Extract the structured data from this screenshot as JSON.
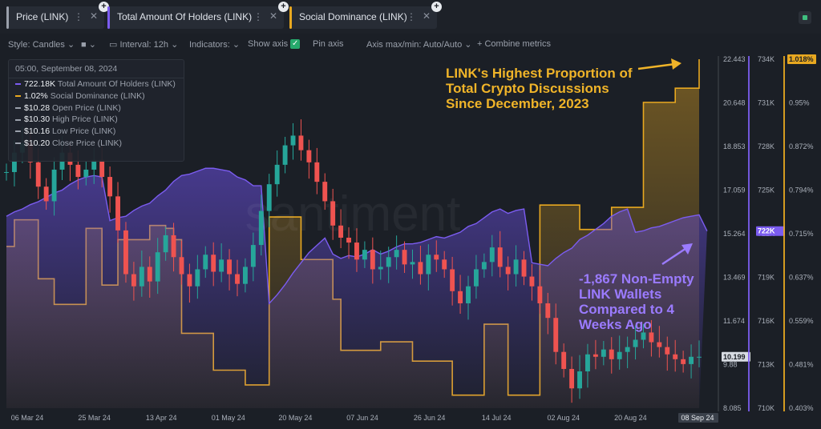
{
  "tabs": [
    {
      "label": "Price (LINK)",
      "color": "#9aa0ab"
    },
    {
      "label": "Total Amount Of Holders (LINK)",
      "color": "#7b5cf0"
    },
    {
      "label": "Social Dominance (LINK)",
      "color": "#e8a820"
    }
  ],
  "toolbar": {
    "style": "Style: Candles",
    "interval": "Interval: 12h",
    "indicators": "Indicators:",
    "show_axis": "Show axis",
    "pin_axis": "Pin axis",
    "axis_minmax": "Axis max/min: Auto/Auto",
    "combine": "+ Combine metrics"
  },
  "legend": {
    "timestamp": "05:00, September 08, 2024",
    "rows": [
      {
        "value": "722.18K",
        "name": "Total Amount Of Holders (LINK)",
        "color": "#7b5cf0"
      },
      {
        "value": "1.02%",
        "name": "Social Dominance (LINK)",
        "color": "#e8a820"
      },
      {
        "value": "$10.28",
        "name": "Open Price (LINK)",
        "color": "#9aa0ab"
      },
      {
        "value": "$10.30",
        "name": "High Price (LINK)",
        "color": "#9aa0ab"
      },
      {
        "value": "$10.16",
        "name": "Low Price (LINK)",
        "color": "#9aa0ab"
      },
      {
        "value": "$10.20",
        "name": "Close Price (LINK)",
        "color": "#9aa0ab"
      }
    ]
  },
  "watermark": "santiment",
  "annotations": {
    "social": [
      "LINK's Highest Proportion of",
      "Total Crypto Discussions",
      "Since December, 2023"
    ],
    "holders": [
      "-1,867 Non-Empty",
      "LINK Wallets",
      "Compared to 4",
      "Weeks Ago"
    ]
  },
  "colors": {
    "price_up": "#26a69a",
    "price_down": "#ef5350",
    "holders": "#7b5cf0",
    "social": "#e8a820",
    "annotation_social": "#f0b429",
    "annotation_holders": "#9b7bff"
  },
  "chart_data": {
    "type": "line",
    "x_ticks": [
      "06 Mar 24",
      "25 Mar 24",
      "13 Apr 24",
      "01 May 24",
      "20 May 24",
      "07 Jun 24",
      "26 Jun 24",
      "14 Jul 24",
      "02 Aug 24",
      "20 Aug 24",
      "08 Sep 24"
    ],
    "series": [
      {
        "name": "Price (LINK)",
        "axis": "price",
        "style": "candles",
        "ylim": [
          8.085,
          22.443
        ],
        "ticks": [
          "22.443",
          "20.648",
          "18.853",
          "17.059",
          "15.264",
          "13.469",
          "11.674",
          "9.88",
          "8.085"
        ],
        "last_label": "10.199",
        "values": [
          17.8,
          18.6,
          19.0,
          18.2,
          17.2,
          16.6,
          17.9,
          18.6,
          18.1,
          17.6,
          17.9,
          18.3,
          17.6,
          16.8,
          15.4,
          13.6,
          13.1,
          13.9,
          13.3,
          14.5,
          15.2,
          14.3,
          13.6,
          13.1,
          13.8,
          14.4,
          13.7,
          14.2,
          13.6,
          13.2,
          13.9,
          14.8,
          16.2,
          17.3,
          18.1,
          18.9,
          19.3,
          18.7,
          18.2,
          17.4,
          16.6,
          15.6,
          15.1,
          14.9,
          14.2,
          14.6,
          13.8,
          13.9,
          14.3,
          14.6,
          14.0,
          14.1,
          13.6,
          14.4,
          14.2,
          13.8,
          12.9,
          12.4,
          13.1,
          13.8,
          14.1,
          14.7,
          13.9,
          13.6,
          14.2,
          13.5,
          13.1,
          12.4,
          11.8,
          10.4,
          9.7,
          8.9,
          9.6,
          10.3,
          10.2,
          10.5,
          10.1,
          10.4,
          10.6,
          10.9,
          11.2,
          10.8,
          10.6,
          10.3,
          10.1,
          9.9,
          10.2,
          10.2
        ]
      },
      {
        "name": "Total Amount Of Holders (LINK)",
        "axis": "holders",
        "ylim": [
          710,
          734
        ],
        "ticks": [
          "734K",
          "731K",
          "728K",
          "725K",
          "722K",
          "719K",
          "716K",
          "713K",
          "710K"
        ],
        "last_label": "722K",
        "values": [
          723.2,
          723.5,
          723.7,
          724.0,
          724.2,
          724.5,
          724.8,
          725.0,
          725.4,
          725.7,
          725.9,
          726.0,
          725.9,
          722.9,
          723.1,
          723.2,
          723.6,
          723.9,
          724.1,
          724.6,
          725.0,
          725.6,
          726.0,
          726.1,
          726.3,
          726.5,
          726.5,
          726.4,
          726.3,
          725.9,
          725.7,
          725.3,
          725.3,
          717.2,
          717.8,
          718.5,
          719.3,
          720.0,
          720.7,
          721.2,
          721.7,
          720.6,
          720.3,
          720.5,
          720.4,
          720.6,
          720.9,
          720.6,
          720.8,
          721.1,
          721.3,
          721.3,
          721.4,
          721.6,
          721.8,
          721.7,
          721.9,
          722.1,
          722.5,
          722.7,
          723.1,
          723.5,
          723.7,
          723.4,
          723.6,
          723.7,
          720.0,
          719.9,
          719.8,
          720.3,
          720.7,
          721.0,
          721.6,
          721.9,
          722.3,
          722.7,
          723.2,
          723.5,
          723.7,
          722.1,
          722.2,
          722.4,
          722.5,
          722.7,
          722.9,
          723.1,
          723.2,
          723.3,
          722.18
        ]
      },
      {
        "name": "Social Dominance (LINK)",
        "axis": "social",
        "ylim": [
          0.403,
          1.018
        ],
        "ticks": [
          "1.018%",
          "0.95%",
          "0.872%",
          "0.794%",
          "0.715%",
          "0.637%",
          "0.559%",
          "0.481%",
          "0.403%"
        ],
        "last_label": "1.018%",
        "values": [
          0.688,
          0.735,
          0.735,
          0.735,
          0.631,
          0.631,
          0.586,
          0.586,
          0.586,
          0.586,
          0.72,
          0.72,
          0.62,
          0.62,
          0.7,
          0.7,
          0.7,
          0.7,
          0.725,
          0.725,
          0.72,
          0.7,
          0.535,
          0.535,
          0.535,
          0.535,
          0.47,
          0.47,
          0.47,
          0.47,
          0.444,
          0.444,
          0.444,
          0.74,
          0.74,
          0.74,
          0.74,
          0.665,
          0.665,
          0.665,
          0.665,
          0.595,
          0.505,
          0.505,
          0.505,
          0.505,
          0.505,
          0.52,
          0.52,
          0.52,
          0.52,
          0.486,
          0.486,
          0.486,
          0.486,
          0.486,
          0.426,
          0.426,
          0.426,
          0.426,
          0.551,
          0.551,
          0.551,
          0.426,
          0.426,
          0.426,
          0.426,
          0.761,
          0.761,
          0.761,
          0.761,
          0.761,
          0.718,
          0.718,
          0.718,
          0.718,
          0.757,
          0.757,
          0.757,
          0.757,
          0.942,
          0.942,
          0.942,
          0.942,
          0.967,
          0.967,
          0.967,
          1.018
        ]
      }
    ],
    "grid": false
  }
}
